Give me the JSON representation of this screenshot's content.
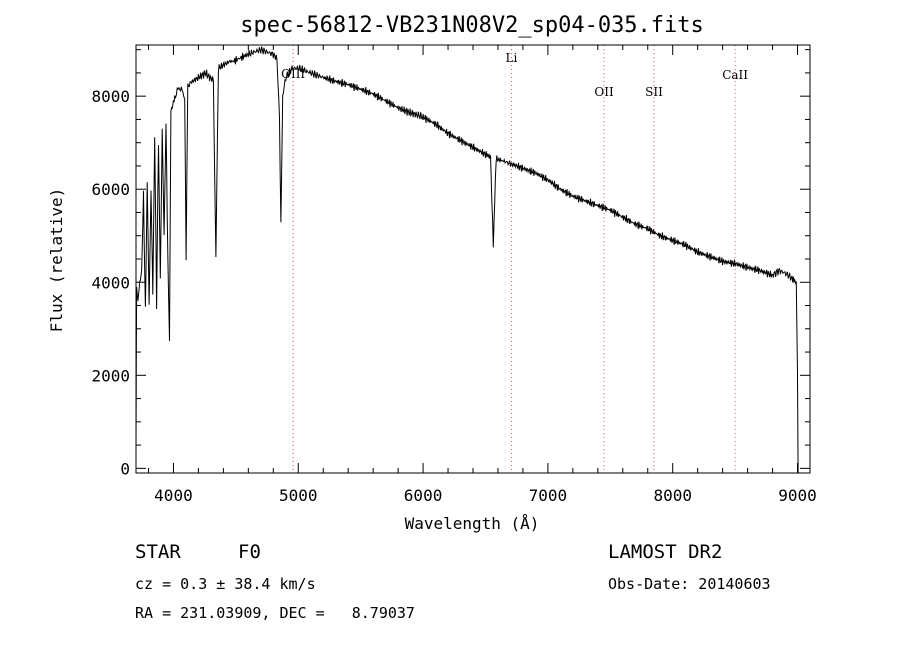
{
  "chart_data": {
    "type": "line",
    "title": "spec-56812-VB231N08V2_sp04-035.fits",
    "xlabel": "Wavelength (Å)",
    "ylabel": "Flux (relative)",
    "xlim": [
      3700,
      9100
    ],
    "ylim": [
      -100,
      9100
    ],
    "xticks": [
      4000,
      5000,
      6000,
      7000,
      8000,
      9000
    ],
    "yticks": [
      0,
      2000,
      4000,
      6000,
      8000
    ],
    "grid": false,
    "series": [
      {
        "x": [
          3700,
          3705,
          3715,
          3730,
          3745,
          3760,
          3775,
          3790,
          3805,
          3820,
          3835,
          3850,
          3865,
          3880,
          3895,
          3910,
          3925,
          3940,
          3955,
          3968,
          3980,
          3995,
          4010,
          4030,
          4050,
          4070,
          4090,
          4101,
          4115,
          4140,
          4170,
          4200,
          4230,
          4260,
          4290,
          4320,
          4340,
          4360,
          4390,
          4420,
          4450,
          4480,
          4520,
          4560,
          4600,
          4650,
          4700,
          4750,
          4800,
          4830,
          4850,
          4861,
          4875,
          4900,
          4950,
          5000,
          5050,
          5100,
          5150,
          5200,
          5300,
          5400,
          5500,
          5600,
          5700,
          5800,
          5890,
          5950,
          6000,
          6100,
          6200,
          6300,
          6400,
          6500,
          6540,
          6563,
          6585,
          6650,
          6700,
          6800,
          6900,
          7000,
          7100,
          7200,
          7300,
          7400,
          7500,
          7600,
          7700,
          7800,
          7900,
          8000,
          8100,
          8200,
          8300,
          8400,
          8500,
          8600,
          8700,
          8800,
          8850,
          8900,
          8950,
          8990,
          9000,
          9005
        ],
        "values": [
          400,
          3900,
          3600,
          4000,
          4200,
          5900,
          3400,
          6100,
          3500,
          6000,
          3800,
          7200,
          3500,
          7000,
          4100,
          7300,
          5000,
          7400,
          4600,
          2800,
          7700,
          7800,
          8000,
          8100,
          8200,
          8100,
          8000,
          4500,
          8200,
          8300,
          8350,
          8400,
          8450,
          8500,
          8400,
          8350,
          4500,
          8600,
          8650,
          8700,
          8750,
          8750,
          8800,
          8850,
          8900,
          8950,
          9000,
          8950,
          8900,
          8800,
          7500,
          5200,
          8000,
          8400,
          8600,
          8600,
          8550,
          8500,
          8450,
          8400,
          8320,
          8250,
          8150,
          8050,
          7900,
          7750,
          7650,
          7600,
          7550,
          7400,
          7200,
          7050,
          6900,
          6750,
          6700,
          4800,
          6650,
          6600,
          6550,
          6450,
          6350,
          6200,
          6000,
          5850,
          5750,
          5650,
          5550,
          5400,
          5250,
          5150,
          5000,
          4900,
          4800,
          4650,
          4550,
          4450,
          4400,
          4320,
          4250,
          4150,
          4250,
          4200,
          4100,
          4000,
          2000,
          -100
        ]
      }
    ],
    "lines": [
      {
        "name": "OIII",
        "wavelength": 4959
      },
      {
        "name": "Li",
        "wavelength": 6708
      },
      {
        "name": "OII",
        "wavelength": 7450
      },
      {
        "name": "SII",
        "wavelength": 7850
      },
      {
        "name": "CaII",
        "wavelength": 8500
      }
    ]
  },
  "info": {
    "class_label": "STAR",
    "subclass": "F0",
    "survey": "LAMOST DR2",
    "cz": "cz = 0.3 ± 38.4 km/s",
    "obs_date": "Obs-Date: 20140603",
    "coords": "RA = 231.03909, DEC =   8.79037"
  },
  "colors": {
    "line_marker": "#d9534f",
    "spectrum": "#000000"
  }
}
